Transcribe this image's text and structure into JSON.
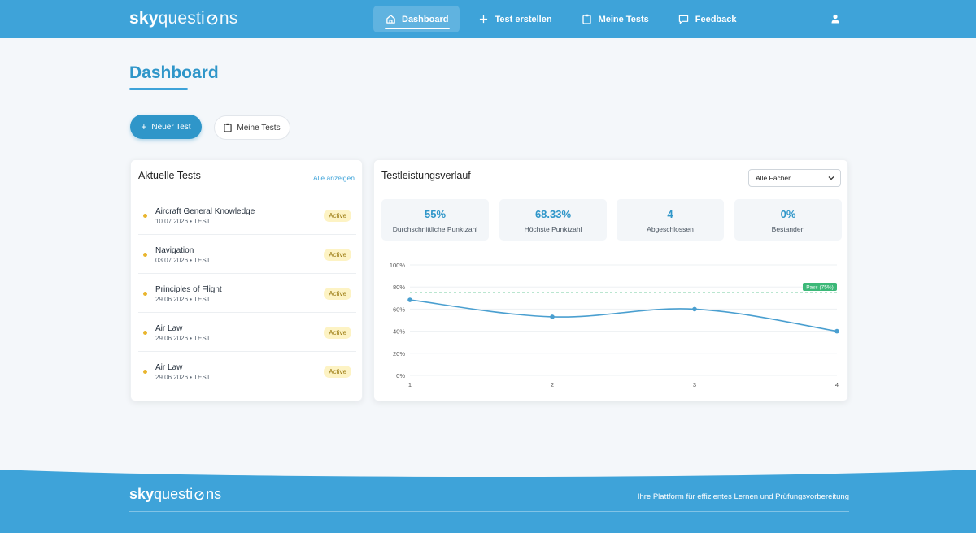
{
  "brand": {
    "sky": "sky",
    "questions_pre": "questi",
    "questions_post": "ns"
  },
  "nav": [
    {
      "label": "Dashboard",
      "icon": "home-icon",
      "active": true
    },
    {
      "label": "Test erstellen",
      "icon": "plus-icon"
    },
    {
      "label": "Meine Tests",
      "icon": "clipboard-icon"
    },
    {
      "label": "Feedback",
      "icon": "chat-icon"
    }
  ],
  "page": {
    "title": "Dashboard"
  },
  "actions": {
    "new_test": "Neuer Test",
    "my_tests": "Meine Tests"
  },
  "recent": {
    "title": "Aktuelle Tests",
    "show_all": "Alle anzeigen",
    "items": [
      {
        "name": "Aircraft General Knowledge",
        "meta": "10.07.2026 • TEST",
        "status": "Active"
      },
      {
        "name": "Navigation",
        "meta": "03.07.2026 • TEST",
        "status": "Active"
      },
      {
        "name": "Principles of Flight",
        "meta": "29.06.2026 • TEST",
        "status": "Active"
      },
      {
        "name": "Air Law",
        "meta": "29.06.2026 • TEST",
        "status": "Active"
      },
      {
        "name": "Air Law",
        "meta": "29.06.2026 • TEST",
        "status": "Active"
      }
    ]
  },
  "performance": {
    "title": "Testleistungsverlauf",
    "filter": "Alle Fächer",
    "stats": [
      {
        "value": "55%",
        "label": "Durchschnittliche Punktzahl"
      },
      {
        "value": "68.33%",
        "label": "Höchste Punktzahl"
      },
      {
        "value": "4",
        "label": "Abgeschlossen"
      },
      {
        "value": "0%",
        "label": "Bestanden"
      }
    ]
  },
  "chart_data": {
    "type": "line",
    "x": [
      1,
      2,
      3,
      4
    ],
    "series": [
      {
        "values": [
          68.33,
          53,
          60,
          40
        ]
      }
    ],
    "ylim": [
      0,
      100
    ],
    "yticks": [
      "0%",
      "20%",
      "40%",
      "60%",
      "80%",
      "100%"
    ],
    "threshold": {
      "value": 75,
      "label": "Pass (75%)"
    },
    "grid": true,
    "line_color": "#4a9fd0",
    "threshold_color": "#3cb878"
  },
  "footer": {
    "tagline": "Ihre Plattform für effizientes Lernen und Prüfungsvorbereitung"
  },
  "colors": {
    "header": "#3ea3d9",
    "accent": "#2f96c9",
    "badge_bg": "#fdf3c4",
    "dot": "#e9b52e"
  }
}
